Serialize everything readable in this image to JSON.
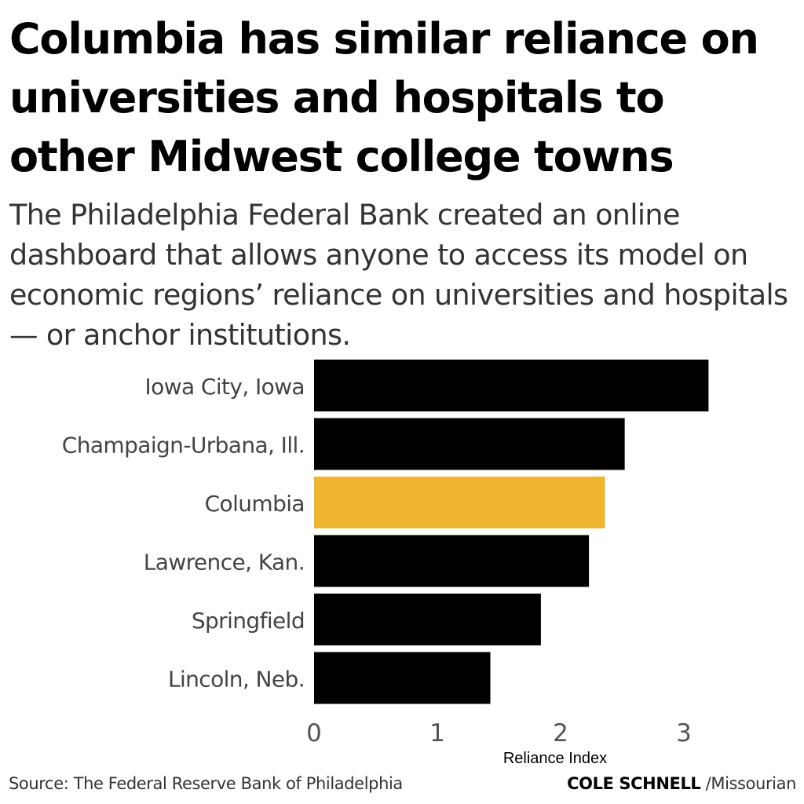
{
  "header": {
    "title": "Columbia has similar reliance on universities and hospitals to other Midwest college towns",
    "subtitle": "The Philadelphia Federal Bank created an online dashboard that allows anyone to access its model on economic regions’ reliance on universities and hospitals — or anchor institutions."
  },
  "footer": {
    "source": "Source: The Federal Reserve Bank of Philadelphia",
    "author": "COLE SCHNELL",
    "outlet": " /Missourian"
  },
  "colors": {
    "default_bar": "#000000",
    "highlight_bar": "#F0B530",
    "label_text": "#444444",
    "tick_text": "#555555"
  },
  "chart_data": {
    "type": "bar",
    "orientation": "horizontal",
    "categories": [
      "Iowa City, Iowa",
      "Champaign-Urbana, Ill.",
      "Columbia",
      "Lawrence, Kan.",
      "Springfield",
      "Lincoln, Neb."
    ],
    "values": [
      3.2,
      2.52,
      2.36,
      2.23,
      1.84,
      1.43
    ],
    "highlight": "Columbia",
    "xlabel": "Reliance Index",
    "ylabel": "",
    "xlim": [
      0,
      3.3
    ],
    "xticks": [
      0,
      1,
      2,
      3
    ],
    "grid": false,
    "legend": "none"
  }
}
